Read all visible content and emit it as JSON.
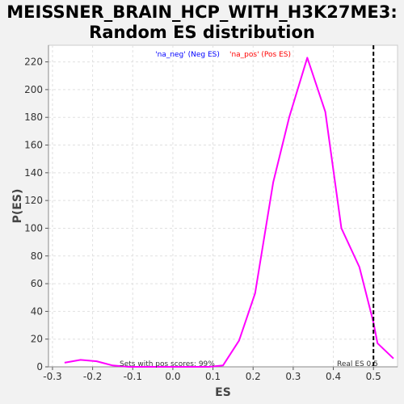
{
  "chart_data": {
    "type": "line",
    "title_line1": "MEISSNER_BRAIN_HCP_WITH_H3K27ME3:",
    "title_line2": "Random ES distribution",
    "xlabel": "ES",
    "ylabel": "P(ES)",
    "xlim": [
      -0.31,
      0.56
    ],
    "ylim": [
      0,
      232
    ],
    "xticks": [
      -0.3,
      -0.2,
      -0.1,
      0.0,
      0.1,
      0.2,
      0.3,
      0.4,
      0.5
    ],
    "xtick_labels": [
      "-0.3",
      "-0.2",
      "-0.1",
      "0.0",
      "0.1",
      "0.2",
      "0.3",
      "0.4",
      "0.5"
    ],
    "yticks": [
      0,
      20,
      40,
      60,
      80,
      100,
      120,
      140,
      160,
      180,
      200,
      220
    ],
    "ytick_labels": [
      "0",
      "20",
      "40",
      "60",
      "80",
      "100",
      "120",
      "140",
      "160",
      "180",
      "200",
      "220"
    ],
    "grid": true,
    "legend": {
      "placement": "top-center",
      "neg_label": "'na_neg' (Neg ES)",
      "pos_label": "'na_pos' (Pos ES)",
      "neg_color": "#0000ff",
      "pos_color": "#ff0000"
    },
    "series": [
      {
        "color": "#ff00ff",
        "x": [
          -0.27,
          -0.23,
          -0.19,
          -0.15,
          -0.11,
          -0.07,
          -0.03,
          0.01,
          0.05,
          0.09,
          0.125,
          0.165,
          0.205,
          0.25,
          0.29,
          0.335,
          0.38,
          0.42,
          0.465,
          0.5,
          0.51,
          0.55
        ],
        "y": [
          3,
          5,
          4,
          1,
          0,
          0,
          0,
          0,
          0,
          0,
          1,
          19,
          53,
          133,
          180,
          223,
          184,
          100,
          72,
          32,
          17,
          6
        ]
      }
    ],
    "real_es": 0.5,
    "real_es_label": "Real ES 0.5",
    "sets_label": "Sets with pos scores: 99%"
  }
}
